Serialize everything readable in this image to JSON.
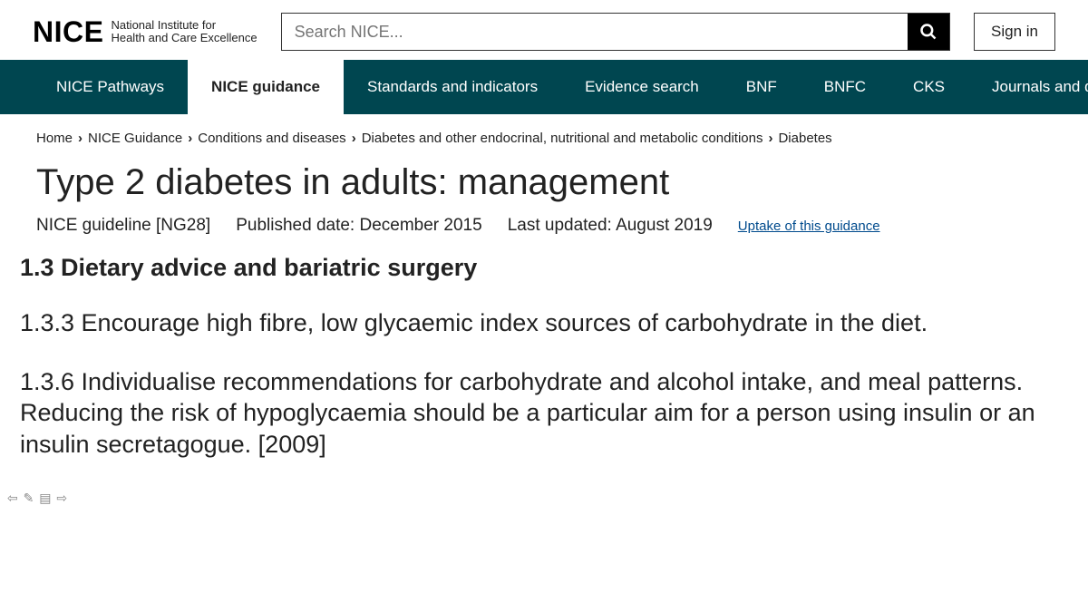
{
  "logo": {
    "word": "NICE",
    "sub_line1": "National Institute for",
    "sub_line2": "Health and Care Excellence"
  },
  "search": {
    "placeholder": "Search NICE..."
  },
  "signin": {
    "label": "Sign in"
  },
  "nav": {
    "items": [
      {
        "label": "NICE Pathways",
        "active": false
      },
      {
        "label": "NICE guidance",
        "active": true
      },
      {
        "label": "Standards and indicators",
        "active": false
      },
      {
        "label": "Evidence search",
        "active": false
      },
      {
        "label": "BNF",
        "active": false
      },
      {
        "label": "BNFC",
        "active": false
      },
      {
        "label": "CKS",
        "active": false
      },
      {
        "label": "Journals and databases",
        "active": false
      }
    ]
  },
  "breadcrumb": {
    "items": [
      "Home",
      "NICE Guidance",
      "Conditions and diseases",
      "Diabetes and other endocrinal, nutritional and metabolic conditions",
      "Diabetes"
    ]
  },
  "page": {
    "title": "Type 2 diabetes in adults: management",
    "ref": "NICE guideline [NG28]",
    "published": "Published date: December 2015",
    "updated": "Last updated: August 2019",
    "uptake": "Uptake of this guidance"
  },
  "content": {
    "section_head": "1.3 Dietary advice and bariatric surgery",
    "para1": "1.3.3 Encourage high fibre, low glycaemic index sources of carbohydrate in the diet.",
    "para2": "1.3.6 Individualise recommendations for carbohydrate and alcohol intake, and meal patterns. Reducing the risk of hypoglycaemia should be a particular aim for a person using insulin or an insulin secretagogue. [2009]"
  },
  "colors": {
    "nav_bg": "#004650",
    "link": "#004b8d"
  }
}
